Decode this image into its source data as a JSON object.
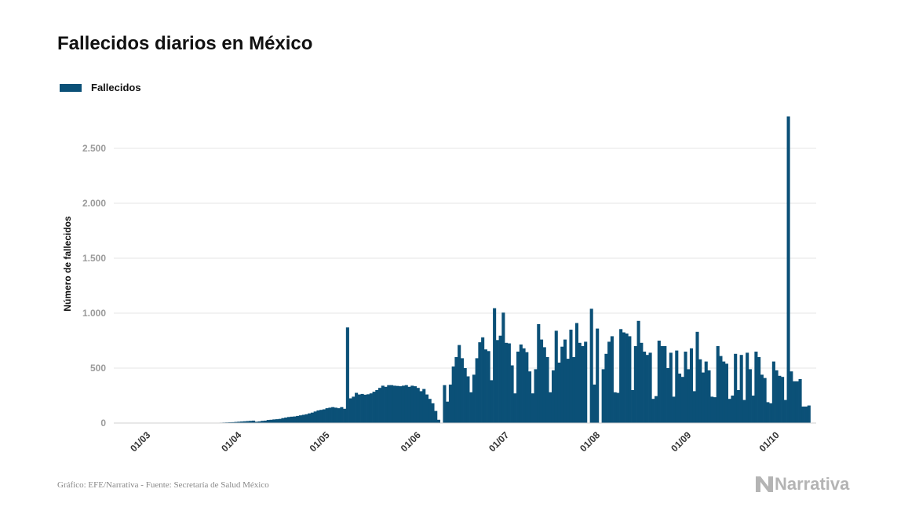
{
  "chart_data": {
    "type": "bar",
    "title": "Fallecidos diarios en México",
    "xlabel": "",
    "ylabel": "Número de fallecidos",
    "ylim": [
      0,
      2900
    ],
    "yticks": [
      0,
      500,
      1000,
      1500,
      2000,
      2500
    ],
    "ytick_labels": [
      "0",
      "500",
      "1.000",
      "1.500",
      "2.000",
      "2.500"
    ],
    "x_start": "2020-02-19",
    "x_end": "2020-10-15",
    "xtick_dates": [
      "2020-03-01",
      "2020-04-01",
      "2020-05-01",
      "2020-06-01",
      "2020-07-01",
      "2020-08-01",
      "2020-09-01",
      "2020-10-01"
    ],
    "xtick_labels": [
      "01/03",
      "01/04",
      "01/05",
      "01/06",
      "01/07",
      "01/08",
      "01/09",
      "01/10"
    ],
    "grid": true,
    "legend_position": "top-left",
    "series": [
      {
        "name": "Fallecidos",
        "color": "#0b5077",
        "start_date": "2020-03-18",
        "values": [
          1,
          1,
          1,
          1,
          1,
          2,
          2,
          3,
          4,
          5,
          6,
          7,
          8,
          10,
          12,
          14,
          16,
          18,
          20,
          22,
          12,
          15,
          20,
          22,
          28,
          30,
          33,
          35,
          38,
          45,
          50,
          55,
          58,
          60,
          65,
          70,
          75,
          80,
          88,
          95,
          105,
          115,
          120,
          125,
          135,
          140,
          145,
          140,
          135,
          145,
          130,
          870,
          225,
          240,
          275,
          260,
          265,
          258,
          262,
          270,
          285,
          300,
          320,
          340,
          330,
          345,
          345,
          340,
          338,
          335,
          340,
          345,
          330,
          340,
          335,
          320,
          290,
          310,
          260,
          220,
          180,
          110,
          30,
          0,
          345,
          195,
          350,
          515,
          600,
          710,
          590,
          500,
          425,
          280,
          440,
          590,
          735,
          780,
          670,
          655,
          390,
          1045,
          755,
          795,
          1005,
          730,
          725,
          525,
          270,
          650,
          715,
          680,
          645,
          470,
          270,
          490,
          900,
          760,
          690,
          600,
          280,
          480,
          840,
          550,
          695,
          760,
          585,
          850,
          600,
          910,
          730,
          700,
          740,
          0,
          1040,
          350,
          860,
          0,
          490,
          630,
          740,
          790,
          280,
          275,
          855,
          825,
          815,
          790,
          300,
          700,
          930,
          730,
          650,
          620,
          640,
          220,
          245,
          750,
          700,
          700,
          500,
          640,
          240,
          660,
          450,
          420,
          650,
          490,
          680,
          290,
          830,
          580,
          460,
          560,
          480,
          240,
          235,
          700,
          610,
          560,
          540,
          220,
          250,
          630,
          300,
          620,
          210,
          640,
          490,
          250,
          650,
          600,
          440,
          410,
          190,
          180,
          560,
          480,
          430,
          420,
          210,
          2790,
          470,
          380,
          380,
          400,
          150,
          150,
          160
        ]
      }
    ]
  },
  "footer": {
    "source": "Gráfico: EFE/Narrativa - Fuente: Secretaría de Salud México",
    "brand": "Narrativa"
  },
  "colors": {
    "bar": "#0b5077",
    "grid": "#e6e6e6",
    "brand": "#b4b4b4"
  }
}
